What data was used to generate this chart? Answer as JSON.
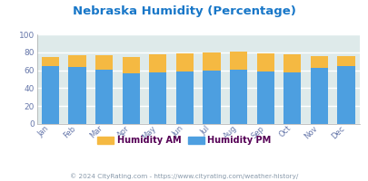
{
  "title": "Nebraska Humidity (Percentage)",
  "months": [
    "Jan",
    "Feb",
    "Mar",
    "Apr",
    "May",
    "Jun",
    "Jul",
    "Aug",
    "Sep",
    "Oct",
    "Nov",
    "Dec"
  ],
  "humidity_pm": [
    65,
    64,
    61,
    57,
    58,
    59,
    60,
    61,
    59,
    58,
    63,
    65
  ],
  "humidity_am_total": [
    75,
    77,
    77,
    75,
    78,
    79,
    80,
    81,
    79,
    78,
    76,
    76
  ],
  "color_pm": "#4d9fe0",
  "color_am": "#f5b942",
  "bg_color": "#deeaea",
  "title_color": "#1877c8",
  "ylim": [
    0,
    100
  ],
  "yticks": [
    0,
    20,
    40,
    60,
    80,
    100
  ],
  "footer_text": "© 2024 CityRating.com - https://www.cityrating.com/weather-history/",
  "legend_am": "Humidity AM",
  "legend_pm": "Humidity PM",
  "legend_text_color": "#550055",
  "footer_color": "#8899aa",
  "tick_color": "#6677aa"
}
